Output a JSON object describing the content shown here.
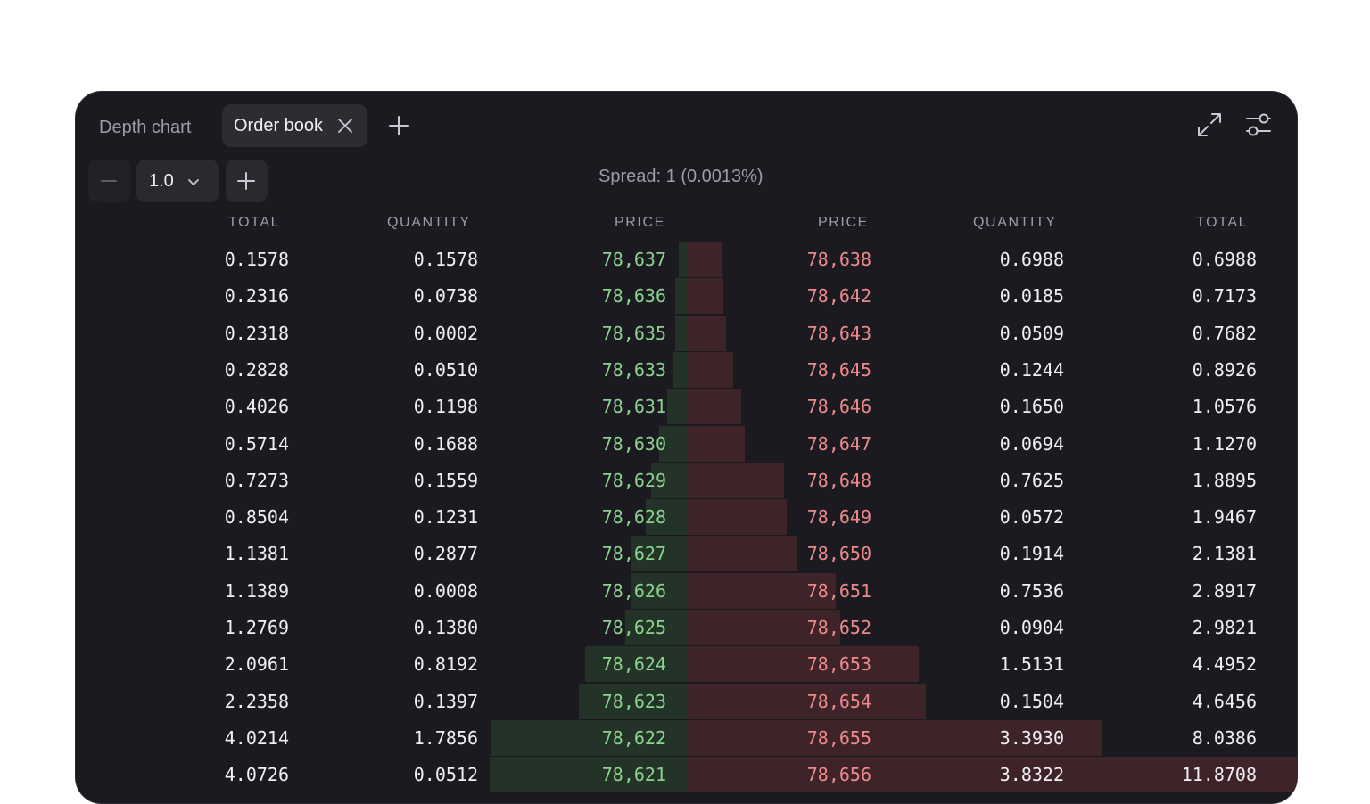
{
  "tabs": {
    "inactive_label": "Depth chart",
    "active_label": "Order book"
  },
  "controls": {
    "tick_size": "1.0",
    "spread_text": "Spread: 1 (0.0013%)"
  },
  "icons": {
    "close": "close-icon",
    "add_tab": "plus-icon",
    "expand": "expand-icon",
    "settings": "sliders-icon",
    "decrement": "minus-icon",
    "increment": "plus-icon",
    "dropdown": "chevron-down-icon"
  },
  "colors": {
    "bid_price": "#8ad28e",
    "ask_price": "#ec8a8b",
    "bid_bar": "#243327",
    "ask_bar": "#3e2329",
    "panel_bg": "#1b1a20"
  },
  "headers": {
    "bid_total": "TOTAL",
    "bid_quantity": "QUANTITY",
    "bid_price": "PRICE",
    "ask_price": "PRICE",
    "ask_quantity": "QUANTITY",
    "ask_total": "TOTAL"
  },
  "depth_max_total": 11.8708,
  "rows": [
    {
      "bid_total": "0.1578",
      "bid_qty": "0.1578",
      "bid_price": "78,637",
      "ask_price": "78,638",
      "ask_qty": "0.6988",
      "ask_total": "0.6988"
    },
    {
      "bid_total": "0.2316",
      "bid_qty": "0.0738",
      "bid_price": "78,636",
      "ask_price": "78,642",
      "ask_qty": "0.0185",
      "ask_total": "0.7173"
    },
    {
      "bid_total": "0.2318",
      "bid_qty": "0.0002",
      "bid_price": "78,635",
      "ask_price": "78,643",
      "ask_qty": "0.0509",
      "ask_total": "0.7682"
    },
    {
      "bid_total": "0.2828",
      "bid_qty": "0.0510",
      "bid_price": "78,633",
      "ask_price": "78,645",
      "ask_qty": "0.1244",
      "ask_total": "0.8926"
    },
    {
      "bid_total": "0.4026",
      "bid_qty": "0.1198",
      "bid_price": "78,631",
      "ask_price": "78,646",
      "ask_qty": "0.1650",
      "ask_total": "1.0576"
    },
    {
      "bid_total": "0.5714",
      "bid_qty": "0.1688",
      "bid_price": "78,630",
      "ask_price": "78,647",
      "ask_qty": "0.0694",
      "ask_total": "1.1270"
    },
    {
      "bid_total": "0.7273",
      "bid_qty": "0.1559",
      "bid_price": "78,629",
      "ask_price": "78,648",
      "ask_qty": "0.7625",
      "ask_total": "1.8895"
    },
    {
      "bid_total": "0.8504",
      "bid_qty": "0.1231",
      "bid_price": "78,628",
      "ask_price": "78,649",
      "ask_qty": "0.0572",
      "ask_total": "1.9467"
    },
    {
      "bid_total": "1.1381",
      "bid_qty": "0.2877",
      "bid_price": "78,627",
      "ask_price": "78,650",
      "ask_qty": "0.1914",
      "ask_total": "2.1381"
    },
    {
      "bid_total": "1.1389",
      "bid_qty": "0.0008",
      "bid_price": "78,626",
      "ask_price": "78,651",
      "ask_qty": "0.7536",
      "ask_total": "2.8917"
    },
    {
      "bid_total": "1.2769",
      "bid_qty": "0.1380",
      "bid_price": "78,625",
      "ask_price": "78,652",
      "ask_qty": "0.0904",
      "ask_total": "2.9821"
    },
    {
      "bid_total": "2.0961",
      "bid_qty": "0.8192",
      "bid_price": "78,624",
      "ask_price": "78,653",
      "ask_qty": "1.5131",
      "ask_total": "4.4952"
    },
    {
      "bid_total": "2.2358",
      "bid_qty": "0.1397",
      "bid_price": "78,623",
      "ask_price": "78,654",
      "ask_qty": "0.1504",
      "ask_total": "4.6456"
    },
    {
      "bid_total": "4.0214",
      "bid_qty": "1.7856",
      "bid_price": "78,622",
      "ask_price": "78,655",
      "ask_qty": "3.3930",
      "ask_total": "8.0386"
    },
    {
      "bid_total": "4.0726",
      "bid_qty": "0.0512",
      "bid_price": "78,621",
      "ask_price": "78,656",
      "ask_qty": "3.8322",
      "ask_total": "11.8708"
    }
  ]
}
